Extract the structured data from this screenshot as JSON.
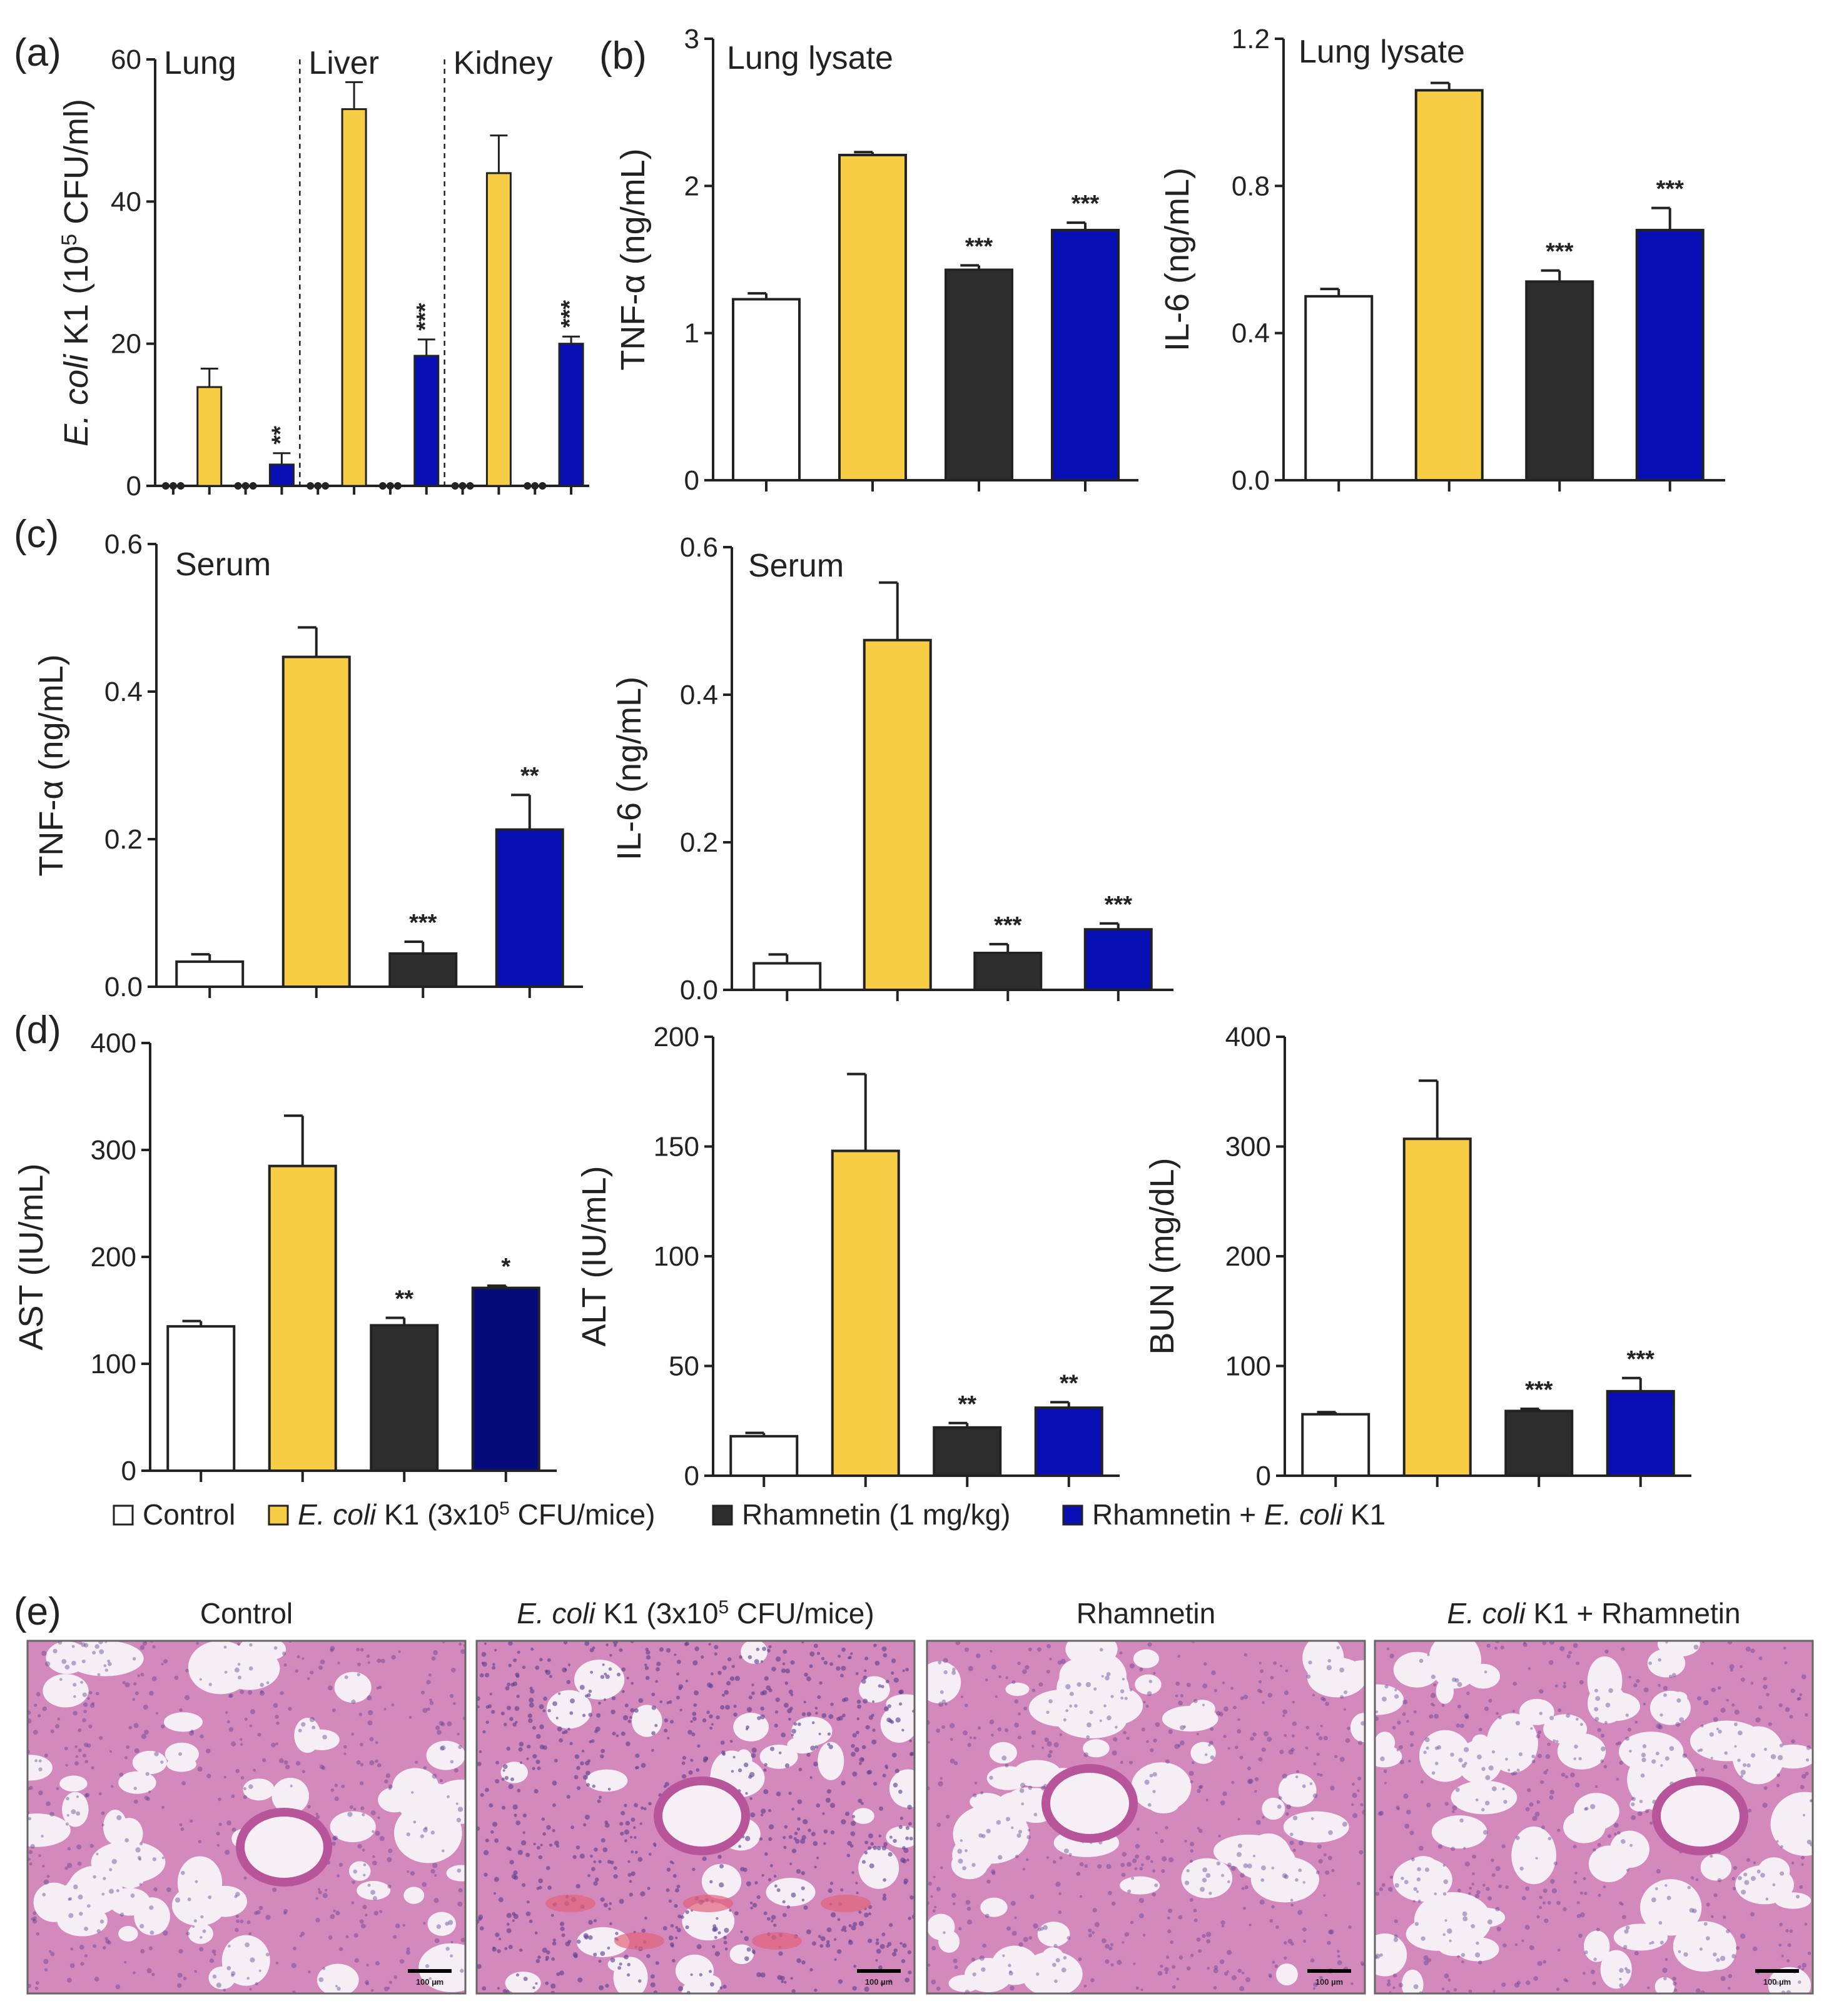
{
  "colors": {
    "control": "#ffffff",
    "ecoli": "#f7cd45",
    "rhamnetin": "#2d2d2d",
    "combo": "#0810b5",
    "combo_ast": "#050b7a",
    "tissue_bg": "#f4e9f2",
    "tissue_cell": "#c05e9f",
    "tissue_nuc": "#5b3f8f"
  },
  "legend": {
    "items": [
      {
        "label": "Control",
        "color_key": "control"
      },
      {
        "label": "E. coli K1 (3x10⁵ CFU/mice)",
        "color_key": "ecoli"
      },
      {
        "label": "Rhamnetin (1 mg/kg)",
        "color_key": "rhamnetin"
      },
      {
        "label": "Rhamnetin + E. coli K1",
        "color_key": "combo"
      }
    ]
  },
  "chart_data": [
    {
      "id": "a",
      "panel_label": "(a)",
      "type": "bar",
      "ylabel": "E. coli K1 (10⁵ CFU/ml)",
      "ylim": [
        0,
        60
      ],
      "yticks": [
        "0",
        "20",
        "40",
        "60"
      ],
      "sections": [
        "Lung",
        "Liver",
        "Kidney"
      ],
      "categories": [
        "Control",
        "E. coli K1",
        "Rhamnetin",
        "Rhamnetin + E. coli K1"
      ],
      "values": [
        [
          0,
          13.9,
          0,
          3.0
        ],
        [
          0,
          53.0,
          0,
          18.3
        ],
        [
          0,
          44.0,
          0,
          20.0
        ]
      ],
      "errors": [
        [
          0,
          2.6,
          0,
          1.6
        ],
        [
          0,
          3.8,
          0,
          2.3
        ],
        [
          0,
          5.3,
          0,
          1.0
        ]
      ],
      "significance": [
        [
          "",
          "",
          "",
          "**"
        ],
        [
          "",
          "",
          "",
          "***"
        ],
        [
          "",
          "",
          "",
          "***"
        ]
      ]
    },
    {
      "id": "b1",
      "panel_label": "(b)",
      "type": "bar",
      "title": "Lung lysate",
      "ylabel": "TNF-α (ng/mL)",
      "ylim": [
        0,
        3
      ],
      "yticks": [
        "0",
        "1",
        "2",
        "3"
      ],
      "categories": [
        "Control",
        "E. coli K1",
        "Rhamnetin",
        "Rhamnetin + E. coli K1"
      ],
      "values": [
        1.23,
        2.21,
        1.43,
        1.7
      ],
      "errors": [
        0.04,
        0.02,
        0.03,
        0.05
      ],
      "significance": [
        "",
        "",
        "***",
        "***"
      ]
    },
    {
      "id": "b2",
      "type": "bar",
      "title": "Lung lysate",
      "ylabel": "IL-6 (ng/mL)",
      "ylim": [
        0,
        1.2
      ],
      "yticks": [
        "0.0",
        "0.4",
        "0.8",
        "1.2"
      ],
      "categories": [
        "Control",
        "E. coli K1",
        "Rhamnetin",
        "Rhamnetin + E. coli K1"
      ],
      "values": [
        0.5,
        1.06,
        0.54,
        0.68
      ],
      "errors": [
        0.02,
        0.02,
        0.03,
        0.06
      ],
      "significance": [
        "",
        "",
        "***",
        "***"
      ]
    },
    {
      "id": "c1",
      "panel_label": "(c)",
      "type": "bar",
      "title": "Serum",
      "ylabel": "TNF-α (ng/mL)",
      "ylim": [
        0,
        0.6
      ],
      "yticks": [
        "0.0",
        "0.2",
        "0.4",
        "0.6"
      ],
      "categories": [
        "Control",
        "E. coli K1",
        "Rhamnetin",
        "Rhamnetin + E. coli K1"
      ],
      "values": [
        0.034,
        0.447,
        0.045,
        0.213
      ],
      "errors": [
        0.01,
        0.04,
        0.016,
        0.047
      ],
      "significance": [
        "",
        "",
        "***",
        "**"
      ]
    },
    {
      "id": "c2",
      "type": "bar",
      "title": "Serum",
      "ylabel": "IL-6 (ng/mL)",
      "ylim": [
        0,
        0.6
      ],
      "yticks": [
        "0.0",
        "0.2",
        "0.4",
        "0.6"
      ],
      "categories": [
        "Control",
        "E. coli K1",
        "Rhamnetin",
        "Rhamnetin + E. coli K1"
      ],
      "values": [
        0.036,
        0.474,
        0.05,
        0.082
      ],
      "errors": [
        0.012,
        0.078,
        0.012,
        0.008
      ],
      "significance": [
        "",
        "",
        "***",
        "***"
      ]
    },
    {
      "id": "d1",
      "panel_label": "(d)",
      "type": "bar",
      "ylabel": "AST (IU/mL)",
      "ylim": [
        0,
        400
      ],
      "yticks": [
        "0",
        "100",
        "200",
        "300",
        "400"
      ],
      "categories": [
        "Control",
        "E. coli K1",
        "Rhamnetin",
        "Rhamnetin + E. coli K1"
      ],
      "values": [
        135,
        285,
        136,
        171
      ],
      "errors": [
        5,
        47,
        7,
        2
      ],
      "significance": [
        "",
        "",
        "**",
        "*"
      ]
    },
    {
      "id": "d2",
      "type": "bar",
      "ylabel": "ALT (IU/mL)",
      "ylim": [
        0,
        200
      ],
      "yticks": [
        "0",
        "50",
        "100",
        "150",
        "200"
      ],
      "categories": [
        "Control",
        "E. coli K1",
        "Rhamnetin",
        "Rhamnetin + E. coli K1"
      ],
      "values": [
        18,
        148,
        22,
        31
      ],
      "errors": [
        1.5,
        35,
        2,
        2.5
      ],
      "significance": [
        "",
        "",
        "**",
        "**"
      ]
    },
    {
      "id": "d3",
      "type": "bar",
      "ylabel": "BUN (mg/dL)",
      "ylim": [
        0,
        400
      ],
      "yticks": [
        "0",
        "100",
        "200",
        "300",
        "400"
      ],
      "categories": [
        "Control",
        "E. coli K1",
        "Rhamnetin",
        "Rhamnetin + E. coli K1"
      ],
      "values": [
        56,
        307,
        59,
        77
      ],
      "errors": [
        2,
        53,
        2,
        12
      ],
      "significance": [
        "",
        "",
        "***",
        "***"
      ]
    }
  ],
  "histology": {
    "panel_label": "(e)",
    "titles": [
      "Control",
      "E. coli K1 (3x10⁵ CFU/mice)",
      "Rhamnetin",
      "E. coli K1 + Rhamnetin"
    ],
    "scale_bar_label": "100 µm"
  }
}
